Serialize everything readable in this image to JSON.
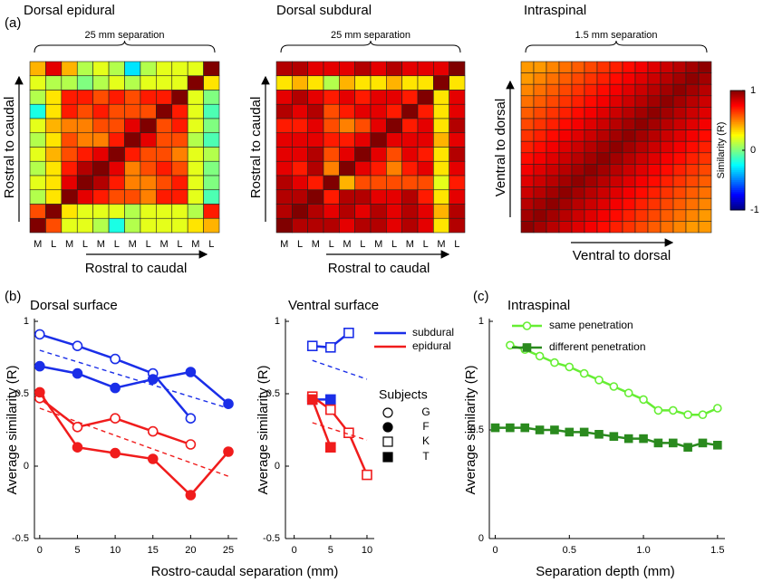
{
  "chart_data": [
    {
      "type": "heatmap",
      "panel_label": "(a)",
      "title": "Dorsal epidural",
      "annotation": "25 mm separation",
      "xlabel": "Rostral to caudal",
      "ylabel": "Rostral to caudal",
      "categories": [
        "M",
        "L",
        "M",
        "L",
        "M",
        "L",
        "M",
        "L",
        "M",
        "L",
        "M",
        "L"
      ],
      "zlim": [
        -1,
        1
      ],
      "values": [
        [
          0.4,
          0.8,
          0.4,
          0.1,
          0.2,
          0.1,
          -0.3,
          0.1,
          0.2,
          0.2,
          0.2,
          1.0
        ],
        [
          0.2,
          0.1,
          0.1,
          0.0,
          0.1,
          0.2,
          0.1,
          0.2,
          0.2,
          0.2,
          1.0,
          0.3
        ],
        [
          0.1,
          0.3,
          0.7,
          0.7,
          0.6,
          0.7,
          0.6,
          0.7,
          0.7,
          1.0,
          0.2,
          0.0
        ],
        [
          -0.2,
          0.3,
          0.7,
          0.6,
          0.7,
          0.6,
          0.6,
          0.6,
          1.0,
          0.7,
          0.2,
          -0.1
        ],
        [
          0.2,
          0.4,
          0.5,
          0.5,
          0.6,
          0.6,
          0.8,
          1.0,
          0.6,
          0.7,
          0.2,
          0.0
        ],
        [
          0.1,
          0.3,
          0.6,
          0.5,
          0.5,
          0.7,
          1.0,
          0.8,
          0.6,
          0.6,
          0.1,
          -0.1
        ],
        [
          0.2,
          0.4,
          0.6,
          0.7,
          0.8,
          1.0,
          0.7,
          0.6,
          0.6,
          0.5,
          0.2,
          0.1
        ],
        [
          0.1,
          0.3,
          0.7,
          0.9,
          1.0,
          0.8,
          0.5,
          0.6,
          0.7,
          0.6,
          0.2,
          0.0
        ],
        [
          0.2,
          0.3,
          0.8,
          1.0,
          0.9,
          0.7,
          0.5,
          0.5,
          0.6,
          0.7,
          0.2,
          0.0
        ],
        [
          0.1,
          0.3,
          1.0,
          0.8,
          0.7,
          0.6,
          0.6,
          0.5,
          0.7,
          0.7,
          0.2,
          -0.1
        ],
        [
          0.6,
          1.0,
          0.3,
          0.2,
          0.2,
          0.2,
          0.1,
          0.2,
          0.2,
          0.2,
          0.1,
          0.7
        ],
        [
          1.0,
          0.6,
          0.2,
          0.2,
          0.1,
          -0.2,
          0.1,
          0.2,
          0.2,
          0.2,
          0.3,
          0.4
        ]
      ]
    },
    {
      "type": "heatmap",
      "title": "Dorsal subdural",
      "annotation": "25 mm separation",
      "xlabel": "Rostral to caudal",
      "ylabel": "Rostral to caudal",
      "categories": [
        "M",
        "L",
        "M",
        "L",
        "M",
        "L",
        "M",
        "L",
        "M",
        "L",
        "M",
        "L"
      ],
      "zlim": [
        -1,
        1
      ],
      "values": [
        [
          0.9,
          0.9,
          0.8,
          0.8,
          0.8,
          0.9,
          0.8,
          0.9,
          0.8,
          0.8,
          0.8,
          1.0
        ],
        [
          0.3,
          0.4,
          0.3,
          0.1,
          0.4,
          0.3,
          0.3,
          0.4,
          0.3,
          0.3,
          1.0,
          0.3
        ],
        [
          0.8,
          0.9,
          0.8,
          0.7,
          0.8,
          0.7,
          0.8,
          0.8,
          0.7,
          1.0,
          0.3,
          0.8
        ],
        [
          0.9,
          0.8,
          0.9,
          0.6,
          0.7,
          0.8,
          0.8,
          0.7,
          1.0,
          0.7,
          0.3,
          0.8
        ],
        [
          0.7,
          0.7,
          0.8,
          0.6,
          0.5,
          0.6,
          0.8,
          1.0,
          0.7,
          0.8,
          0.3,
          0.9
        ],
        [
          0.8,
          0.8,
          0.8,
          0.7,
          0.7,
          0.8,
          1.0,
          0.8,
          0.8,
          0.8,
          0.4,
          0.8
        ],
        [
          0.8,
          0.8,
          0.9,
          0.6,
          0.8,
          1.0,
          0.8,
          0.6,
          0.8,
          0.7,
          0.3,
          0.9
        ],
        [
          0.8,
          0.7,
          0.9,
          0.5,
          1.0,
          0.8,
          0.7,
          0.5,
          0.7,
          0.8,
          0.3,
          0.8
        ],
        [
          0.9,
          0.8,
          0.7,
          1.0,
          0.4,
          0.6,
          0.6,
          0.6,
          0.6,
          0.6,
          0.2,
          0.7
        ],
        [
          0.9,
          0.9,
          1.0,
          0.7,
          0.9,
          0.9,
          0.8,
          0.8,
          0.9,
          0.7,
          0.3,
          0.8
        ],
        [
          0.9,
          1.0,
          0.9,
          0.8,
          0.9,
          0.8,
          0.9,
          0.8,
          0.9,
          0.8,
          0.4,
          0.9
        ],
        [
          1.0,
          0.9,
          0.9,
          0.9,
          0.8,
          0.9,
          0.9,
          0.8,
          0.9,
          0.8,
          0.3,
          0.9
        ]
      ]
    },
    {
      "type": "heatmap",
      "title": "Intraspinal",
      "annotation": "1.5 mm separation",
      "xlabel": "Ventral to dorsal",
      "ylabel": "Ventral to dorsal",
      "zlim": [
        -1,
        1
      ],
      "colorbar": {
        "label": "Similarity (R)",
        "ticks": [
          -1,
          0,
          1
        ]
      },
      "values": [
        [
          0.45,
          0.45,
          0.49,
          0.53,
          0.57,
          0.61,
          0.65,
          0.69,
          0.73,
          0.77,
          0.81,
          0.85,
          0.89,
          0.93,
          0.97
        ],
        [
          0.45,
          0.49,
          0.53,
          0.57,
          0.61,
          0.65,
          0.69,
          0.73,
          0.77,
          0.81,
          0.85,
          0.89,
          0.93,
          0.97,
          0.93
        ],
        [
          0.49,
          0.53,
          0.57,
          0.61,
          0.65,
          0.69,
          0.73,
          0.77,
          0.81,
          0.85,
          0.89,
          0.93,
          0.97,
          0.93,
          0.89
        ],
        [
          0.53,
          0.57,
          0.61,
          0.65,
          0.69,
          0.73,
          0.77,
          0.81,
          0.85,
          0.89,
          0.93,
          0.97,
          0.93,
          0.89,
          0.85
        ],
        [
          0.57,
          0.61,
          0.65,
          0.69,
          0.73,
          0.77,
          0.81,
          0.85,
          0.89,
          0.93,
          0.97,
          0.93,
          0.89,
          0.85,
          0.81
        ],
        [
          0.61,
          0.65,
          0.69,
          0.73,
          0.77,
          0.81,
          0.85,
          0.89,
          0.93,
          0.97,
          0.93,
          0.89,
          0.85,
          0.81,
          0.77
        ],
        [
          0.65,
          0.69,
          0.73,
          0.77,
          0.81,
          0.85,
          0.89,
          0.93,
          0.97,
          0.93,
          0.89,
          0.85,
          0.81,
          0.77,
          0.73
        ],
        [
          0.69,
          0.73,
          0.77,
          0.81,
          0.85,
          0.89,
          0.93,
          0.97,
          0.93,
          0.89,
          0.85,
          0.81,
          0.77,
          0.73,
          0.69
        ],
        [
          0.73,
          0.77,
          0.81,
          0.85,
          0.89,
          0.93,
          0.97,
          0.93,
          0.89,
          0.85,
          0.81,
          0.77,
          0.73,
          0.69,
          0.65
        ],
        [
          0.77,
          0.81,
          0.85,
          0.89,
          0.93,
          0.97,
          0.93,
          0.89,
          0.85,
          0.81,
          0.77,
          0.73,
          0.69,
          0.65,
          0.61
        ],
        [
          0.81,
          0.85,
          0.89,
          0.93,
          0.97,
          0.93,
          0.89,
          0.85,
          0.81,
          0.77,
          0.73,
          0.69,
          0.65,
          0.61,
          0.57
        ],
        [
          0.85,
          0.89,
          0.93,
          0.97,
          0.93,
          0.89,
          0.85,
          0.81,
          0.77,
          0.73,
          0.69,
          0.65,
          0.61,
          0.57,
          0.53
        ],
        [
          0.89,
          0.93,
          0.97,
          0.93,
          0.89,
          0.85,
          0.81,
          0.77,
          0.73,
          0.69,
          0.65,
          0.61,
          0.57,
          0.53,
          0.49
        ],
        [
          0.93,
          0.97,
          0.93,
          0.89,
          0.85,
          0.81,
          0.77,
          0.73,
          0.69,
          0.65,
          0.61,
          0.57,
          0.53,
          0.49,
          0.45
        ],
        [
          0.97,
          0.93,
          0.89,
          0.85,
          0.81,
          0.77,
          0.73,
          0.69,
          0.65,
          0.61,
          0.57,
          0.53,
          0.49,
          0.45,
          0.45
        ]
      ]
    },
    {
      "type": "line",
      "panel_label": "(b)",
      "title": "Dorsal surface",
      "xlabel": "Rostro-caudal separation (mm)",
      "ylabel": "Average similarity (R)",
      "xlim": [
        -0.7,
        26.2
      ],
      "ylim": [
        -0.5,
        1
      ],
      "xticks": [
        0,
        5,
        10,
        15,
        20,
        25
      ],
      "yticks": [
        -0.5,
        0,
        0.5,
        1
      ],
      "series": [
        {
          "color": "#1a2ee8",
          "marker": "circle",
          "filled": false,
          "x": [
            0,
            5,
            10,
            15,
            20
          ],
          "values": [
            0.91,
            0.83,
            0.74,
            0.64,
            0.33
          ]
        },
        {
          "color": "#1a2ee8",
          "marker": "circle",
          "filled": true,
          "x": [
            0,
            5,
            10,
            15,
            20,
            25
          ],
          "values": [
            0.69,
            0.64,
            0.54,
            0.6,
            0.65,
            0.43
          ]
        },
        {
          "color": "#1a2ee8",
          "dash": true,
          "x": [
            0,
            25
          ],
          "values": [
            0.8,
            0.4
          ]
        },
        {
          "color": "#f01c1c",
          "marker": "circle",
          "filled": false,
          "x": [
            0,
            5,
            10,
            15,
            20
          ],
          "values": [
            0.47,
            0.27,
            0.33,
            0.24,
            0.15
          ]
        },
        {
          "color": "#f01c1c",
          "marker": "circle",
          "filled": true,
          "x": [
            0,
            5,
            10,
            15,
            20,
            25
          ],
          "values": [
            0.51,
            0.13,
            0.09,
            0.05,
            -0.2,
            0.1
          ]
        },
        {
          "color": "#f01c1c",
          "dash": true,
          "x": [
            0,
            25
          ],
          "values": [
            0.4,
            -0.07
          ]
        }
      ]
    },
    {
      "type": "line",
      "title": "Ventral surface",
      "ylabel": "Average similarity (R)",
      "xlim": [
        -1.2,
        11
      ],
      "ylim": [
        -0.5,
        1
      ],
      "xticks": [
        0,
        5,
        10
      ],
      "yticks": [
        -0.5,
        0,
        0.5,
        1
      ],
      "series": [
        {
          "color": "#1a2ee8",
          "marker": "square",
          "filled": false,
          "x": [
            2.5,
            5,
            7.5
          ],
          "values": [
            0.83,
            0.82,
            0.92
          ]
        },
        {
          "color": "#1a2ee8",
          "marker": "square",
          "filled": true,
          "x": [
            2.5,
            5
          ],
          "values": [
            0.46,
            0.46
          ]
        },
        {
          "color": "#1a2ee8",
          "dash": true,
          "x": [
            2.5,
            10
          ],
          "values": [
            0.73,
            0.6
          ]
        },
        {
          "color": "#f01c1c",
          "marker": "square",
          "filled": false,
          "x": [
            2.5,
            5,
            7.5,
            10
          ],
          "values": [
            0.48,
            0.39,
            0.23,
            -0.06
          ]
        },
        {
          "color": "#f01c1c",
          "marker": "square",
          "filled": true,
          "x": [
            2.5,
            5
          ],
          "values": [
            0.46,
            0.13
          ]
        },
        {
          "color": "#f01c1c",
          "dash": true,
          "x": [
            2.5,
            10
          ],
          "values": [
            0.3,
            0.18
          ]
        }
      ],
      "legend": {
        "lines": [
          {
            "name": "subdural",
            "color": "#1a2ee8"
          },
          {
            "name": "epidural",
            "color": "#f01c1c"
          }
        ],
        "title": "Subjects",
        "markers": [
          {
            "name": "G",
            "marker": "circle",
            "filled": false
          },
          {
            "name": "F",
            "marker": "circle",
            "filled": true
          },
          {
            "name": "K",
            "marker": "square",
            "filled": false
          },
          {
            "name": "T",
            "marker": "square",
            "filled": true
          }
        ]
      }
    },
    {
      "type": "line",
      "panel_label": "(c)",
      "title": "Intraspinal",
      "xlabel": "Separation depth (mm)",
      "ylabel": "Average similarity (R)",
      "xlim": [
        -0.04,
        1.55
      ],
      "ylim": [
        0,
        1
      ],
      "xticks": [
        0,
        0.5,
        {
          "value": 1,
          "label": "1.0"
        },
        1.5
      ],
      "yticks": [
        0,
        0.5,
        1
      ],
      "series": [
        {
          "name": "same penetration",
          "color": "#66ee33",
          "marker": "circle",
          "filled": false,
          "x": [
            0.1,
            0.2,
            0.3,
            0.4,
            0.5,
            0.6,
            0.7,
            0.8,
            0.9,
            1.0,
            1.1,
            1.2,
            1.3,
            1.4,
            1.5
          ],
          "values": [
            0.89,
            0.87,
            0.84,
            0.81,
            0.79,
            0.76,
            0.73,
            0.7,
            0.67,
            0.64,
            0.59,
            0.59,
            0.57,
            0.57,
            0.6
          ]
        },
        {
          "name": "different penetration",
          "color": "#2a8a1e",
          "marker": "square",
          "filled": true,
          "x": [
            0,
            0.1,
            0.2,
            0.3,
            0.4,
            0.5,
            0.6,
            0.7,
            0.8,
            0.9,
            1.0,
            1.1,
            1.2,
            1.3,
            1.4,
            1.5
          ],
          "values": [
            0.51,
            0.51,
            0.51,
            0.5,
            0.5,
            0.49,
            0.49,
            0.48,
            0.47,
            0.46,
            0.46,
            0.44,
            0.44,
            0.42,
            0.44,
            0.43
          ]
        }
      ]
    }
  ]
}
